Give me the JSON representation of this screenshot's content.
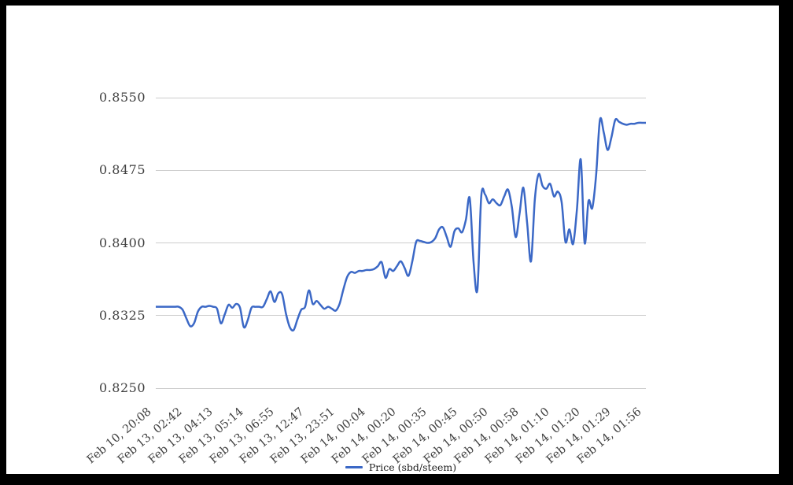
{
  "window": {
    "frame_color": "#000000",
    "panel_color": "#ffffff"
  },
  "colors": {
    "line": "#3b68c6",
    "grid": "#cccccc",
    "axis_label": "#404040",
    "legend_text": "#222222"
  },
  "legend": {
    "label": "Price (sbd/steem)"
  },
  "chart_data": {
    "type": "line",
    "title": "",
    "xlabel": "",
    "ylabel": "",
    "grid": true,
    "legend_position": "bottom",
    "ylim": [
      0.825,
      0.855
    ],
    "y_tick_labels": [
      "0.8550",
      "0.8475",
      "0.8400",
      "0.8325",
      "0.8250"
    ],
    "y_ticks": [
      0.855,
      0.8475,
      0.84,
      0.8325,
      0.825
    ],
    "x_tick_labels": [
      "Feb 10, 20:08",
      "Feb 13, 02:42",
      "Feb 13, 04:13",
      "Feb 13, 05:14",
      "Feb 13, 06:55",
      "Feb 13, 12:47",
      "Feb 13, 23:51",
      "Feb 14, 00:04",
      "Feb 14, 00:20",
      "Feb 14, 00:35",
      "Feb 14, 00:45",
      "Feb 14, 00:50",
      "Feb 14, 00:58",
      "Feb 14, 01:10",
      "Feb 14, 01:20",
      "Feb 14, 01:29",
      "Feb 14, 01:56"
    ],
    "x_ticks_every_n_points": 8,
    "series": [
      {
        "name": "Price (sbd/steem)",
        "color": "#3b68c6",
        "values": [
          0.8334,
          0.8334,
          0.8334,
          0.8334,
          0.8334,
          0.8334,
          0.8334,
          0.8331,
          0.8322,
          0.8314,
          0.8317,
          0.8329,
          0.8334,
          0.8334,
          0.8335,
          0.8334,
          0.8332,
          0.8317,
          0.8326,
          0.8336,
          0.8333,
          0.8337,
          0.8333,
          0.8313,
          0.832,
          0.8333,
          0.8334,
          0.8334,
          0.8334,
          0.8342,
          0.835,
          0.8339,
          0.8348,
          0.8347,
          0.8327,
          0.8313,
          0.831,
          0.8321,
          0.8331,
          0.8334,
          0.8351,
          0.8337,
          0.834,
          0.8336,
          0.8332,
          0.8334,
          0.8332,
          0.833,
          0.8337,
          0.8352,
          0.8365,
          0.837,
          0.8369,
          0.8371,
          0.8371,
          0.8372,
          0.8372,
          0.8373,
          0.8376,
          0.838,
          0.8364,
          0.8373,
          0.8371,
          0.8376,
          0.8381,
          0.8374,
          0.8366,
          0.8381,
          0.8401,
          0.8402,
          0.8401,
          0.84,
          0.8401,
          0.8405,
          0.8414,
          0.8416,
          0.8406,
          0.8396,
          0.8412,
          0.8415,
          0.8411,
          0.8424,
          0.8446,
          0.838,
          0.8352,
          0.8448,
          0.845,
          0.8441,
          0.8445,
          0.8441,
          0.8439,
          0.8448,
          0.8455,
          0.8437,
          0.8406,
          0.843,
          0.8457,
          0.842,
          0.8381,
          0.8445,
          0.8471,
          0.8459,
          0.8456,
          0.8461,
          0.8448,
          0.8453,
          0.8442,
          0.8401,
          0.8414,
          0.8399,
          0.8435,
          0.8486,
          0.84,
          0.8443,
          0.8436,
          0.847,
          0.8527,
          0.8514,
          0.8496,
          0.8509,
          0.8527,
          0.8525,
          0.8523,
          0.8522,
          0.8523,
          0.8523,
          0.8524,
          0.8524,
          0.8524
        ]
      }
    ]
  }
}
